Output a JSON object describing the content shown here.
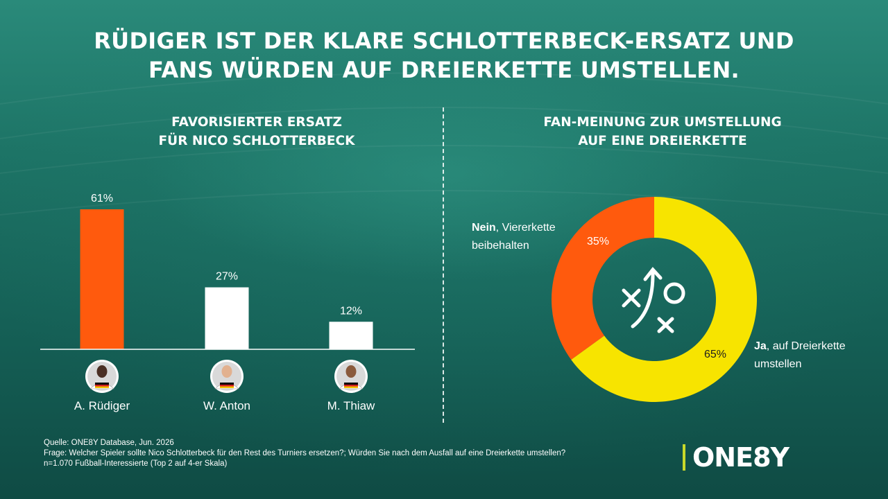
{
  "title": {
    "line1": "RÜDIGER IST DER KLARE SCHLOTTERBECK-ERSATZ UND",
    "line2": "FANS WÜRDEN AUF DREIERKETTE UMSTELLEN."
  },
  "left_panel": {
    "title_line1": "FAVORISIERTER ERSATZ",
    "title_line2": "FÜR NICO SCHLOTTERBECK"
  },
  "right_panel": {
    "title_line1": "FAN-MEINUNG ZUR UMSTELLUNG",
    "title_line2": "AUF EINE DREIERKETTE",
    "no_label_bold": "Nein",
    "no_label_rest": ", Viererkette",
    "no_label_line2": "beibehalten",
    "yes_label_bold": "Ja",
    "yes_label_rest": ", auf Dreierkette",
    "yes_label_line2": "umstellen",
    "center_icon": "tactics-board-icon"
  },
  "colors": {
    "orange": "#ff5a0d",
    "white": "#ffffff",
    "yellow": "#f7e400",
    "logo_accent": "#c8d92a"
  },
  "chart_data": [
    {
      "type": "bar",
      "title": "FAVORISIERTER ERSATZ FÜR NICO SCHLOTTERBECK",
      "categories": [
        "A. Rüdiger",
        "W. Anton",
        "M. Thiaw"
      ],
      "values": [
        61,
        27,
        12
      ],
      "value_labels": [
        "61%",
        "27%",
        "12%"
      ],
      "unit": "%",
      "bar_colors": [
        "#ff5a0d",
        "#ffffff",
        "#ffffff"
      ],
      "category_icons": [
        "player-avatar-icon",
        "player-avatar-icon",
        "player-avatar-icon"
      ],
      "ylim": [
        0,
        61
      ],
      "grid": false
    },
    {
      "type": "pie",
      "variant": "donut",
      "title": "FAN-MEINUNG ZUR UMSTELLUNG AUF EINE DREIERKETTE",
      "slices": [
        {
          "label": "Ja",
          "value": 65,
          "value_label": "65%",
          "color": "#f7e400"
        },
        {
          "label": "Nein",
          "value": 35,
          "value_label": "35%",
          "color": "#ff5a0d"
        }
      ],
      "start": "top, clockwise"
    }
  ],
  "footer": {
    "line1": "Quelle: ONE8Y Database, Jun. 2026",
    "line2": "Frage: Welcher Spieler sollte Nico Schlotterbeck für den Rest des Turniers ersetzen?; Würden Sie nach dem Ausfall auf eine Dreierkette umstellen?",
    "line3": "n=1.070 Fußball-Interessierte (Top 2 auf 4-er Skala)"
  },
  "logo": {
    "text": "ONE8Y"
  }
}
